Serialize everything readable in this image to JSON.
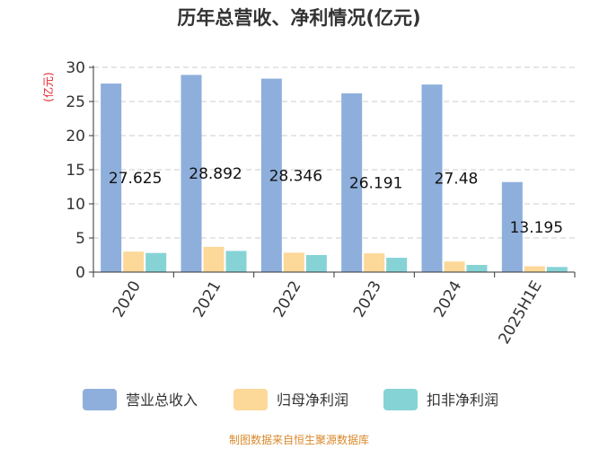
{
  "chart_data": {
    "type": "bar",
    "title": "历年总营收、净利情况(亿元)",
    "ylabel": "(亿元)",
    "xlabel": "",
    "categories": [
      "2020",
      "2021",
      "2022",
      "2023",
      "2024",
      "2025H1E"
    ],
    "ylim": [
      0,
      30
    ],
    "yticks": [
      "0",
      "5",
      "10",
      "15",
      "20",
      "25",
      "30"
    ],
    "grid": true,
    "legend_position": "bottom",
    "series": [
      {
        "name": "营业总收入",
        "color": "#8eafdc",
        "values": [
          27.625,
          28.892,
          28.346,
          26.191,
          27.48,
          13.195
        ],
        "labels": [
          "27.625",
          "28.892",
          "28.346",
          "26.191",
          "27.48",
          "13.195"
        ]
      },
      {
        "name": "归母净利润",
        "color": "#fcd899",
        "values": [
          3.0,
          3.7,
          2.85,
          2.75,
          1.55,
          0.85
        ]
      },
      {
        "name": "扣非净利润",
        "color": "#86d3d6",
        "values": [
          2.8,
          3.1,
          2.5,
          2.1,
          1.05,
          0.75
        ]
      }
    ],
    "source": "制图数据来自恒生聚源数据库"
  }
}
